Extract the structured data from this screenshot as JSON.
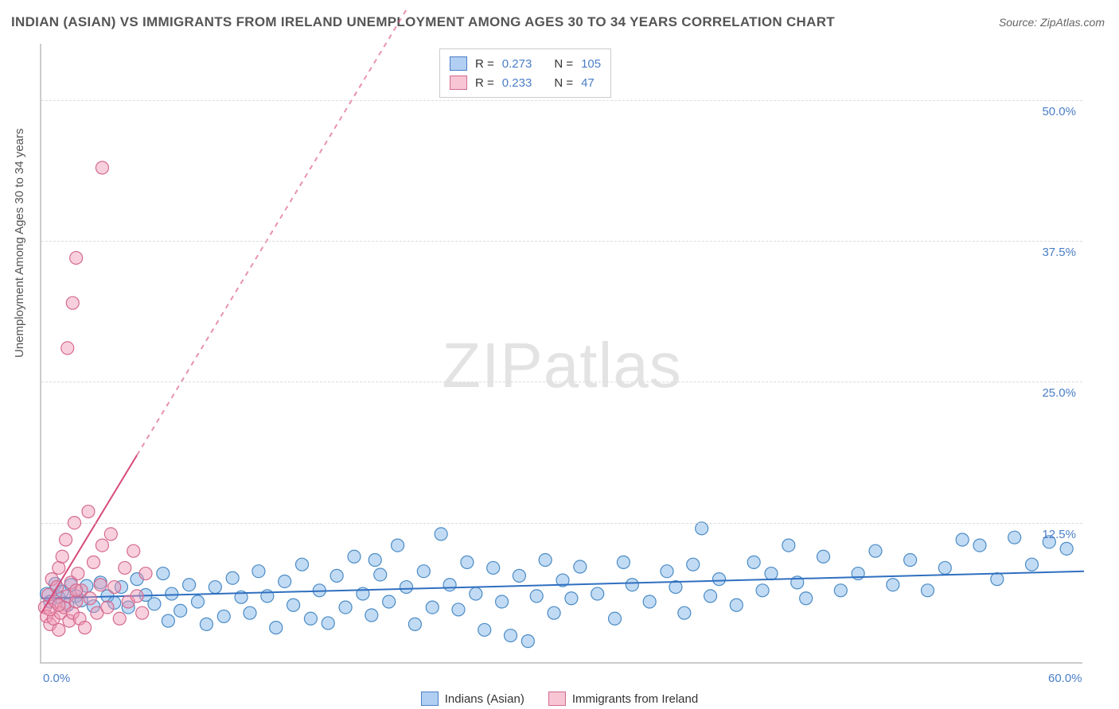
{
  "title": "INDIAN (ASIAN) VS IMMIGRANTS FROM IRELAND UNEMPLOYMENT AMONG AGES 30 TO 34 YEARS CORRELATION CHART",
  "source": "Source: ZipAtlas.com",
  "ylabel": "Unemployment Among Ages 30 to 34 years",
  "watermark": {
    "bold": "ZIP",
    "light": "atlas"
  },
  "chart": {
    "type": "scatter",
    "background_color": "#ffffff",
    "grid_color": "#dddddd",
    "axis_color": "#cccccc",
    "title_fontsize": 17,
    "label_fontsize": 15,
    "xlim": [
      0,
      60
    ],
    "ylim": [
      0,
      55
    ],
    "xticks": [
      {
        "value": 0,
        "label": "0.0%"
      },
      {
        "value": 60,
        "label": "60.0%"
      }
    ],
    "yticks": [
      {
        "value": 12.5,
        "label": "12.5%"
      },
      {
        "value": 25.0,
        "label": "25.0%"
      },
      {
        "value": 37.5,
        "label": "37.5%"
      },
      {
        "value": 50.0,
        "label": "50.0%"
      }
    ],
    "stats": [
      {
        "swatch": "blue",
        "r_label": "R =",
        "r": "0.273",
        "n_label": "N =",
        "n": "105"
      },
      {
        "swatch": "pink",
        "r_label": "R =",
        "r": "0.233",
        "n_label": "N =",
        "n": " 47"
      }
    ],
    "legend": [
      {
        "swatch": "blue",
        "label": "Indians (Asian)"
      },
      {
        "swatch": "pink",
        "label": "Immigrants from Ireland"
      }
    ],
    "series": [
      {
        "name": "Indians (Asian)",
        "color": "#5a9bd5",
        "fill": "rgba(120,175,230,0.45)",
        "stroke": "#4a8bc5",
        "marker_radius": 8,
        "trend": {
          "x1": 0,
          "y1": 5.8,
          "x2": 60,
          "y2": 8.2,
          "dash_x2": 60,
          "dash_y2": 8.2,
          "line_color": "#2f6fc0",
          "line_width": 2
        },
        "points": [
          [
            0.3,
            6.2
          ],
          [
            0.5,
            5.5
          ],
          [
            0.8,
            7.1
          ],
          [
            1.0,
            5.9
          ],
          [
            1.2,
            6.4
          ],
          [
            1.5,
            5.2
          ],
          [
            1.7,
            7.0
          ],
          [
            2.0,
            6.0
          ],
          [
            2.3,
            5.6
          ],
          [
            2.6,
            6.9
          ],
          [
            3.0,
            5.1
          ],
          [
            3.4,
            7.2
          ],
          [
            3.8,
            6.0
          ],
          [
            4.2,
            5.4
          ],
          [
            4.6,
            6.8
          ],
          [
            5.0,
            5.0
          ],
          [
            5.5,
            7.5
          ],
          [
            6.0,
            6.1
          ],
          [
            6.5,
            5.3
          ],
          [
            7.0,
            8.0
          ],
          [
            7.3,
            3.8
          ],
          [
            7.5,
            6.2
          ],
          [
            8.0,
            4.7
          ],
          [
            8.5,
            7.0
          ],
          [
            9.0,
            5.5
          ],
          [
            9.5,
            3.5
          ],
          [
            10.0,
            6.8
          ],
          [
            10.5,
            4.2
          ],
          [
            11.0,
            7.6
          ],
          [
            11.5,
            5.9
          ],
          [
            12.0,
            4.5
          ],
          [
            12.5,
            8.2
          ],
          [
            13.0,
            6.0
          ],
          [
            13.5,
            3.2
          ],
          [
            14.0,
            7.3
          ],
          [
            14.5,
            5.2
          ],
          [
            15.0,
            8.8
          ],
          [
            15.5,
            4.0
          ],
          [
            16.0,
            6.5
          ],
          [
            16.5,
            3.6
          ],
          [
            17.0,
            7.8
          ],
          [
            17.5,
            5.0
          ],
          [
            18.0,
            9.5
          ],
          [
            18.5,
            6.2
          ],
          [
            19.0,
            4.3
          ],
          [
            19.2,
            9.2
          ],
          [
            19.5,
            7.9
          ],
          [
            20.0,
            5.5
          ],
          [
            20.5,
            10.5
          ],
          [
            21.0,
            6.8
          ],
          [
            21.5,
            3.5
          ],
          [
            22.0,
            8.2
          ],
          [
            22.5,
            5.0
          ],
          [
            23.0,
            11.5
          ],
          [
            23.5,
            7.0
          ],
          [
            24.0,
            4.8
          ],
          [
            24.5,
            9.0
          ],
          [
            25.0,
            6.2
          ],
          [
            25.5,
            3.0
          ],
          [
            26.0,
            8.5
          ],
          [
            26.5,
            5.5
          ],
          [
            27.0,
            2.5
          ],
          [
            27.5,
            7.8
          ],
          [
            28.0,
            2.0
          ],
          [
            28.5,
            6.0
          ],
          [
            29.0,
            9.2
          ],
          [
            29.5,
            4.5
          ],
          [
            30.0,
            7.4
          ],
          [
            30.5,
            5.8
          ],
          [
            31.0,
            8.6
          ],
          [
            32.0,
            6.2
          ],
          [
            33.0,
            4.0
          ],
          [
            33.5,
            9.0
          ],
          [
            34.0,
            7.0
          ],
          [
            35.0,
            5.5
          ],
          [
            36.0,
            8.2
          ],
          [
            36.5,
            6.8
          ],
          [
            37.0,
            4.5
          ],
          [
            37.5,
            8.8
          ],
          [
            38.0,
            12.0
          ],
          [
            38.5,
            6.0
          ],
          [
            39.0,
            7.5
          ],
          [
            40.0,
            5.2
          ],
          [
            41.0,
            9.0
          ],
          [
            41.5,
            6.5
          ],
          [
            42.0,
            8.0
          ],
          [
            43.0,
            10.5
          ],
          [
            43.5,
            7.2
          ],
          [
            44.0,
            5.8
          ],
          [
            45.0,
            9.5
          ],
          [
            46.0,
            6.5
          ],
          [
            47.0,
            8.0
          ],
          [
            48.0,
            10.0
          ],
          [
            49.0,
            7.0
          ],
          [
            50.0,
            9.2
          ],
          [
            51.0,
            6.5
          ],
          [
            52.0,
            8.5
          ],
          [
            53.0,
            11.0
          ],
          [
            54.0,
            10.5
          ],
          [
            55.0,
            7.5
          ],
          [
            56.0,
            11.2
          ],
          [
            57.0,
            8.8
          ],
          [
            58.0,
            10.8
          ],
          [
            59.0,
            10.2
          ]
        ]
      },
      {
        "name": "Immigrants from Ireland",
        "color": "#e27a9a",
        "fill": "rgba(240,150,180,0.45)",
        "stroke": "#d46a8e",
        "marker_radius": 8,
        "trend": {
          "x1": 0,
          "y1": 4.5,
          "x2": 5.5,
          "y2": 18.5,
          "dash_x2": 21,
          "dash_y2": 58,
          "line_color": "#d84a7a",
          "line_width": 2
        },
        "points": [
          [
            0.2,
            5.0
          ],
          [
            0.3,
            4.2
          ],
          [
            0.4,
            6.1
          ],
          [
            0.5,
            3.5
          ],
          [
            0.6,
            7.5
          ],
          [
            0.7,
            4.0
          ],
          [
            0.8,
            5.5
          ],
          [
            0.9,
            6.8
          ],
          [
            1.0,
            3.0
          ],
          [
            1.0,
            8.5
          ],
          [
            1.1,
            4.5
          ],
          [
            1.2,
            9.5
          ],
          [
            1.3,
            5.0
          ],
          [
            1.4,
            11.0
          ],
          [
            1.5,
            6.0
          ],
          [
            1.6,
            3.8
          ],
          [
            1.7,
            7.2
          ],
          [
            1.8,
            4.5
          ],
          [
            1.9,
            12.5
          ],
          [
            2.0,
            5.5
          ],
          [
            2.1,
            8.0
          ],
          [
            2.2,
            4.0
          ],
          [
            2.3,
            6.5
          ],
          [
            2.5,
            3.2
          ],
          [
            2.7,
            13.5
          ],
          [
            2.8,
            5.8
          ],
          [
            3.0,
            9.0
          ],
          [
            3.2,
            4.5
          ],
          [
            3.4,
            7.0
          ],
          [
            3.5,
            10.5
          ],
          [
            3.8,
            5.0
          ],
          [
            4.0,
            11.5
          ],
          [
            4.2,
            6.8
          ],
          [
            4.5,
            4.0
          ],
          [
            4.8,
            8.5
          ],
          [
            5.0,
            5.5
          ],
          [
            5.3,
            10.0
          ],
          [
            5.5,
            6.0
          ],
          [
            5.8,
            4.5
          ],
          [
            6.0,
            8.0
          ],
          [
            1.5,
            28.0
          ],
          [
            1.8,
            32.0
          ],
          [
            2.0,
            36.0
          ],
          [
            3.5,
            44.0
          ],
          [
            0.5,
            4.8
          ],
          [
            1.0,
            5.2
          ],
          [
            2.0,
            6.5
          ]
        ]
      }
    ]
  }
}
